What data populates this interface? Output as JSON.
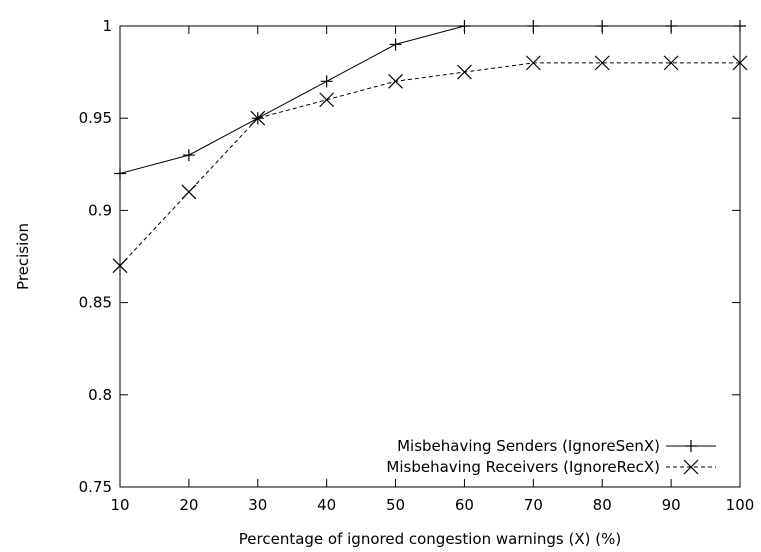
{
  "chart_data": {
    "type": "line",
    "title": "",
    "xlabel": "Percentage of ignored congestion warnings (X) (%)",
    "ylabel": "Precision",
    "xlim": [
      10,
      100
    ],
    "ylim": [
      0.75,
      1.0
    ],
    "x_ticks": [
      10,
      20,
      30,
      40,
      50,
      60,
      70,
      80,
      90,
      100
    ],
    "y_ticks": [
      0.75,
      0.8,
      0.85,
      0.9,
      0.95,
      1.0
    ],
    "x_tick_labels": [
      "10",
      "20",
      "30",
      "40",
      "50",
      "60",
      "70",
      "80",
      "90",
      "100"
    ],
    "y_tick_labels": [
      "0.75",
      "0.8",
      "0.85",
      "0.9",
      "0.95",
      "1"
    ],
    "grid": false,
    "legend_position": "bottom-right",
    "x": [
      10,
      20,
      30,
      40,
      50,
      60,
      70,
      80,
      90,
      100
    ],
    "series": [
      {
        "name": "Misbehaving Senders (IgnoreSenX)",
        "values": [
          0.92,
          0.93,
          0.95,
          0.97,
          0.99,
          1.0,
          1.0,
          1.0,
          1.0,
          1.0
        ],
        "marker": "plus",
        "line_style": "solid",
        "color": "#000000"
      },
      {
        "name": "Misbehaving Receivers (IgnoreRecX)",
        "values": [
          0.87,
          0.91,
          0.95,
          0.96,
          0.97,
          0.975,
          0.98,
          0.98,
          0.98,
          0.98
        ],
        "marker": "cross",
        "line_style": "dashed",
        "color": "#000000"
      }
    ]
  }
}
